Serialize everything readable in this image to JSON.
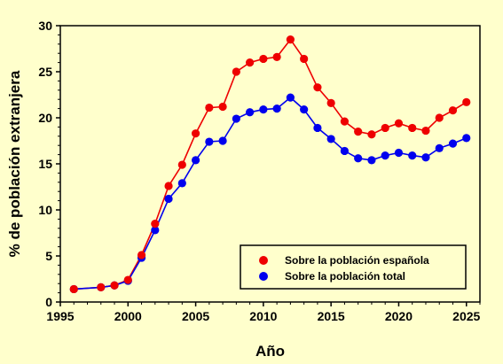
{
  "chart_data": {
    "type": "line",
    "title": "",
    "xlabel": "Año",
    "ylabel": "% de población extranjera",
    "xlim": [
      1995,
      2026
    ],
    "ylim": [
      0,
      30
    ],
    "xticks": [
      1995,
      2000,
      2005,
      2010,
      2015,
      2020,
      2025
    ],
    "yticks": [
      0,
      5,
      10,
      15,
      20,
      25,
      30
    ],
    "grid": false,
    "legend_position": "bottom-right",
    "series": [
      {
        "name": "Sobre la población española",
        "color": "#ee0000",
        "x": [
          1996,
          1998,
          1999,
          2000,
          2001,
          2002,
          2003,
          2004,
          2005,
          2006,
          2007,
          2008,
          2009,
          2010,
          2011,
          2012,
          2013,
          2014,
          2015,
          2016,
          2017,
          2018,
          2019,
          2020,
          2021,
          2022,
          2023,
          2024,
          2025
        ],
        "y": [
          1.4,
          1.6,
          1.8,
          2.4,
          5.1,
          8.5,
          12.6,
          14.9,
          18.3,
          21.1,
          21.2,
          25.0,
          26.0,
          26.4,
          26.6,
          28.5,
          26.4,
          23.3,
          21.6,
          19.6,
          18.5,
          18.2,
          18.9,
          19.4,
          18.9,
          18.6,
          20.0,
          20.8,
          21.7
        ]
      },
      {
        "name": "Sobre la población total",
        "color": "#0000ee",
        "x": [
          1996,
          1998,
          1999,
          2000,
          2001,
          2002,
          2003,
          2004,
          2005,
          2006,
          2007,
          2008,
          2009,
          2010,
          2011,
          2012,
          2013,
          2014,
          2015,
          2016,
          2017,
          2018,
          2019,
          2020,
          2021,
          2022,
          2023,
          2024,
          2025
        ],
        "y": [
          1.4,
          1.6,
          1.8,
          2.3,
          4.8,
          7.8,
          11.2,
          12.9,
          15.4,
          17.4,
          17.5,
          19.9,
          20.6,
          20.9,
          21.0,
          22.2,
          20.9,
          18.9,
          17.7,
          16.4,
          15.6,
          15.4,
          15.9,
          16.2,
          15.9,
          15.7,
          16.7,
          17.2,
          17.8
        ]
      }
    ]
  }
}
